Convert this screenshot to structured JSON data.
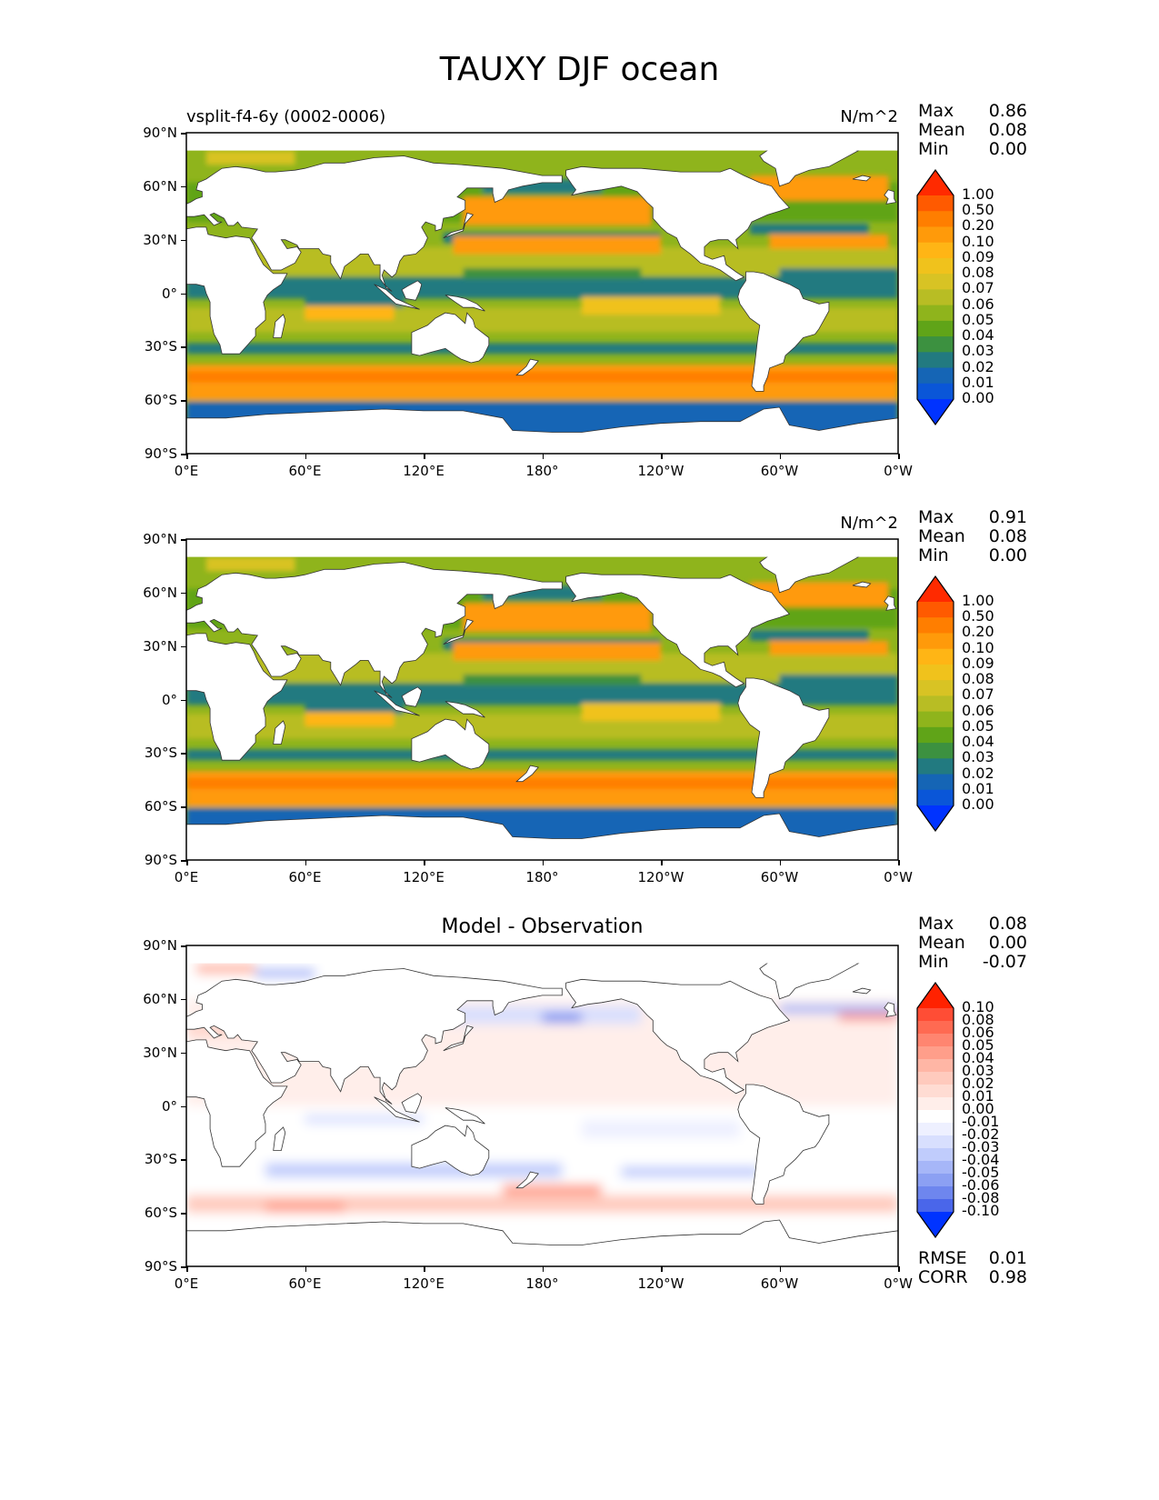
{
  "figure": {
    "title": "TAUXY DJF ocean"
  },
  "lon_ticks": [
    "0°E",
    "60°E",
    "120°E",
    "180°",
    "120°W",
    "60°W",
    "0°W"
  ],
  "lat_ticks": [
    "90°N",
    "60°N",
    "30°N",
    "0°",
    "30°S",
    "60°S",
    "90°S"
  ],
  "panels": [
    {
      "id": "model",
      "left_title": "vsplit-f4-6y (0002-0006)",
      "units": "N/m^2",
      "center_title": "",
      "stats": [
        {
          "label": "Max",
          "value": "0.86"
        },
        {
          "label": "Mean",
          "value": "0.08"
        },
        {
          "label": "Min",
          "value": "0.00"
        }
      ],
      "colorbar": {
        "labels": [
          "1.00",
          "0.50",
          "0.20",
          "0.10",
          "0.09",
          "0.08",
          "0.07",
          "0.06",
          "0.05",
          "0.04",
          "0.03",
          "0.02",
          "0.01",
          "0.00"
        ],
        "colors": [
          "#ff2a00",
          "#ff5a00",
          "#ff7e00",
          "#ff9a0a",
          "#ffb515",
          "#f0c21c",
          "#d8c324",
          "#b8bd24",
          "#8fb41c",
          "#60a418",
          "#3c9140",
          "#227a80",
          "#1565b5",
          "#0a56d8",
          "#0033ff"
        ]
      }
    },
    {
      "id": "obs",
      "left_title": "",
      "units": "N/m^2",
      "center_title": "",
      "stats": [
        {
          "label": "Max",
          "value": "0.91"
        },
        {
          "label": "Mean",
          "value": "0.08"
        },
        {
          "label": "Min",
          "value": "0.00"
        }
      ],
      "colorbar": {
        "labels": [
          "1.00",
          "0.50",
          "0.20",
          "0.10",
          "0.09",
          "0.08",
          "0.07",
          "0.06",
          "0.05",
          "0.04",
          "0.03",
          "0.02",
          "0.01",
          "0.00"
        ],
        "colors": [
          "#ff2a00",
          "#ff5a00",
          "#ff7e00",
          "#ff9a0a",
          "#ffb515",
          "#f0c21c",
          "#d8c324",
          "#b8bd24",
          "#8fb41c",
          "#60a418",
          "#3c9140",
          "#227a80",
          "#1565b5",
          "#0a56d8",
          "#0033ff"
        ]
      }
    },
    {
      "id": "diff",
      "left_title": "",
      "units": "",
      "center_title": "Model - Observation",
      "stats": [
        {
          "label": "Max",
          "value": "0.08"
        },
        {
          "label": "Mean",
          "value": "0.00"
        },
        {
          "label": "Min",
          "value": "-0.07"
        }
      ],
      "bottom_stats": [
        {
          "label": "RMSE",
          "value": "0.01"
        },
        {
          "label": "CORR",
          "value": "0.98"
        }
      ],
      "colorbar": {
        "labels": [
          "0.10",
          "0.08",
          "0.06",
          "0.05",
          "0.04",
          "0.03",
          "0.02",
          "0.01",
          "0.00",
          "-0.01",
          "-0.02",
          "-0.03",
          "-0.04",
          "-0.05",
          "-0.06",
          "-0.08",
          "-0.10"
        ],
        "colors": [
          "#ff2200",
          "#ff4d35",
          "#ff6a52",
          "#ff8570",
          "#ff9e8a",
          "#ffb6a5",
          "#ffcabd",
          "#ffdcd3",
          "#ffeeea",
          "#ffffff",
          "#eef0ff",
          "#d8dffe",
          "#c0ccfc",
          "#a6b6f8",
          "#8ca0f3",
          "#6e86ee",
          "#4a66ea",
          "#0033ff"
        ]
      }
    }
  ]
}
